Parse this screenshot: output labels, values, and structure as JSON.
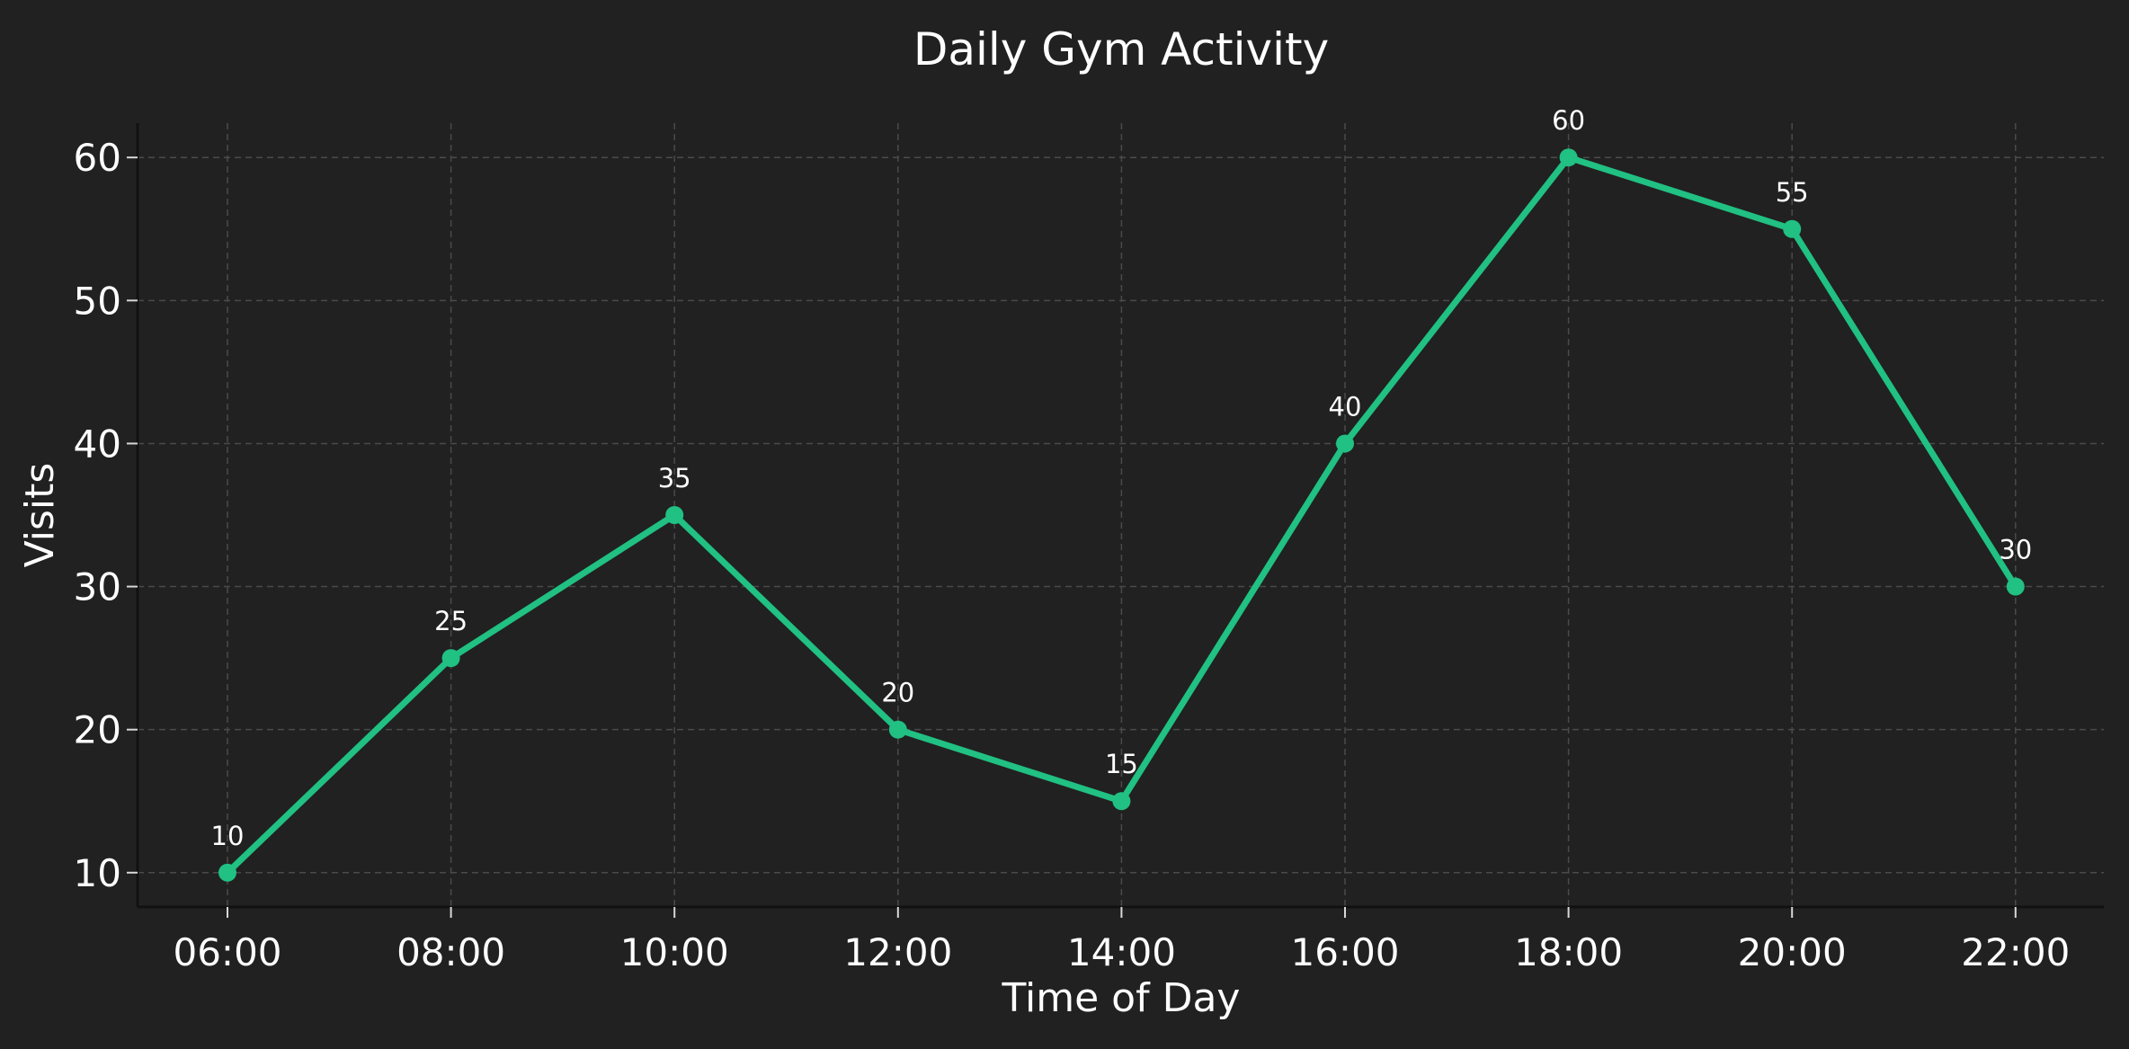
{
  "chart_data": {
    "type": "line",
    "title": "Daily Gym Activity",
    "xlabel": "Time of Day",
    "ylabel": "Visits",
    "categories": [
      "06:00",
      "08:00",
      "10:00",
      "12:00",
      "14:00",
      "16:00",
      "18:00",
      "20:00",
      "22:00"
    ],
    "series": [
      {
        "values": [
          10,
          25,
          35,
          20,
          15,
          40,
          60,
          55,
          30
        ],
        "color": "#21c083"
      }
    ],
    "yticks": [
      10,
      20,
      30,
      40,
      50,
      60
    ],
    "ylim": [
      7.6,
      62.4
    ],
    "grid": true,
    "data_labels": true,
    "background": "#212121"
  }
}
